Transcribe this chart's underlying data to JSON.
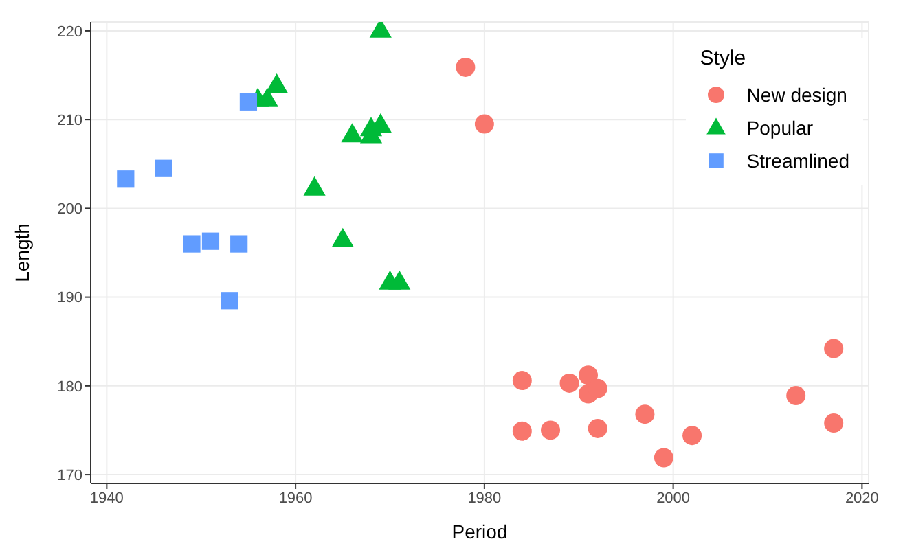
{
  "chart_data": {
    "type": "scatter",
    "xlabel": "Period",
    "ylabel": "Length",
    "legend_title": "Style",
    "legend": "top right",
    "grid": true,
    "xlim": [
      1938.3,
      2020.7
    ],
    "xticks": [
      1940,
      1960,
      1980,
      2000,
      2020
    ],
    "ylim": [
      169,
      221
    ],
    "yticks": [
      170,
      180,
      190,
      200,
      210,
      220
    ],
    "series": [
      {
        "name": "New design",
        "color": "#f8766d",
        "marker": "circle",
        "x": [
          1978,
          1980,
          1984,
          1984,
          1987,
          1989,
          1991,
          1991,
          1992,
          1992,
          1997,
          1999,
          2002,
          2013,
          2017,
          2017
        ],
        "values": [
          215.9,
          209.5,
          180.6,
          174.9,
          175.0,
          180.3,
          181.2,
          179.1,
          179.7,
          175.2,
          176.8,
          171.9,
          174.4,
          178.9,
          184.2,
          175.8
        ]
      },
      {
        "name": "Popular",
        "color": "#00ba38",
        "marker": "triangle",
        "x": [
          1969,
          1958,
          1956,
          1957,
          1966,
          1968,
          1969,
          1968,
          1962,
          1965,
          1970,
          1971
        ],
        "values": [
          220.1,
          213.9,
          212.3,
          212.3,
          208.3,
          209.0,
          209.4,
          208.2,
          202.3,
          196.5,
          191.7,
          191.7
        ]
      },
      {
        "name": "Streamlined",
        "color": "#619cff",
        "marker": "square",
        "x": [
          1942,
          1946,
          1949,
          1951,
          1954,
          1953,
          1955
        ],
        "values": [
          203.3,
          204.5,
          196.0,
          196.3,
          196.0,
          189.6,
          212.0
        ]
      }
    ]
  }
}
